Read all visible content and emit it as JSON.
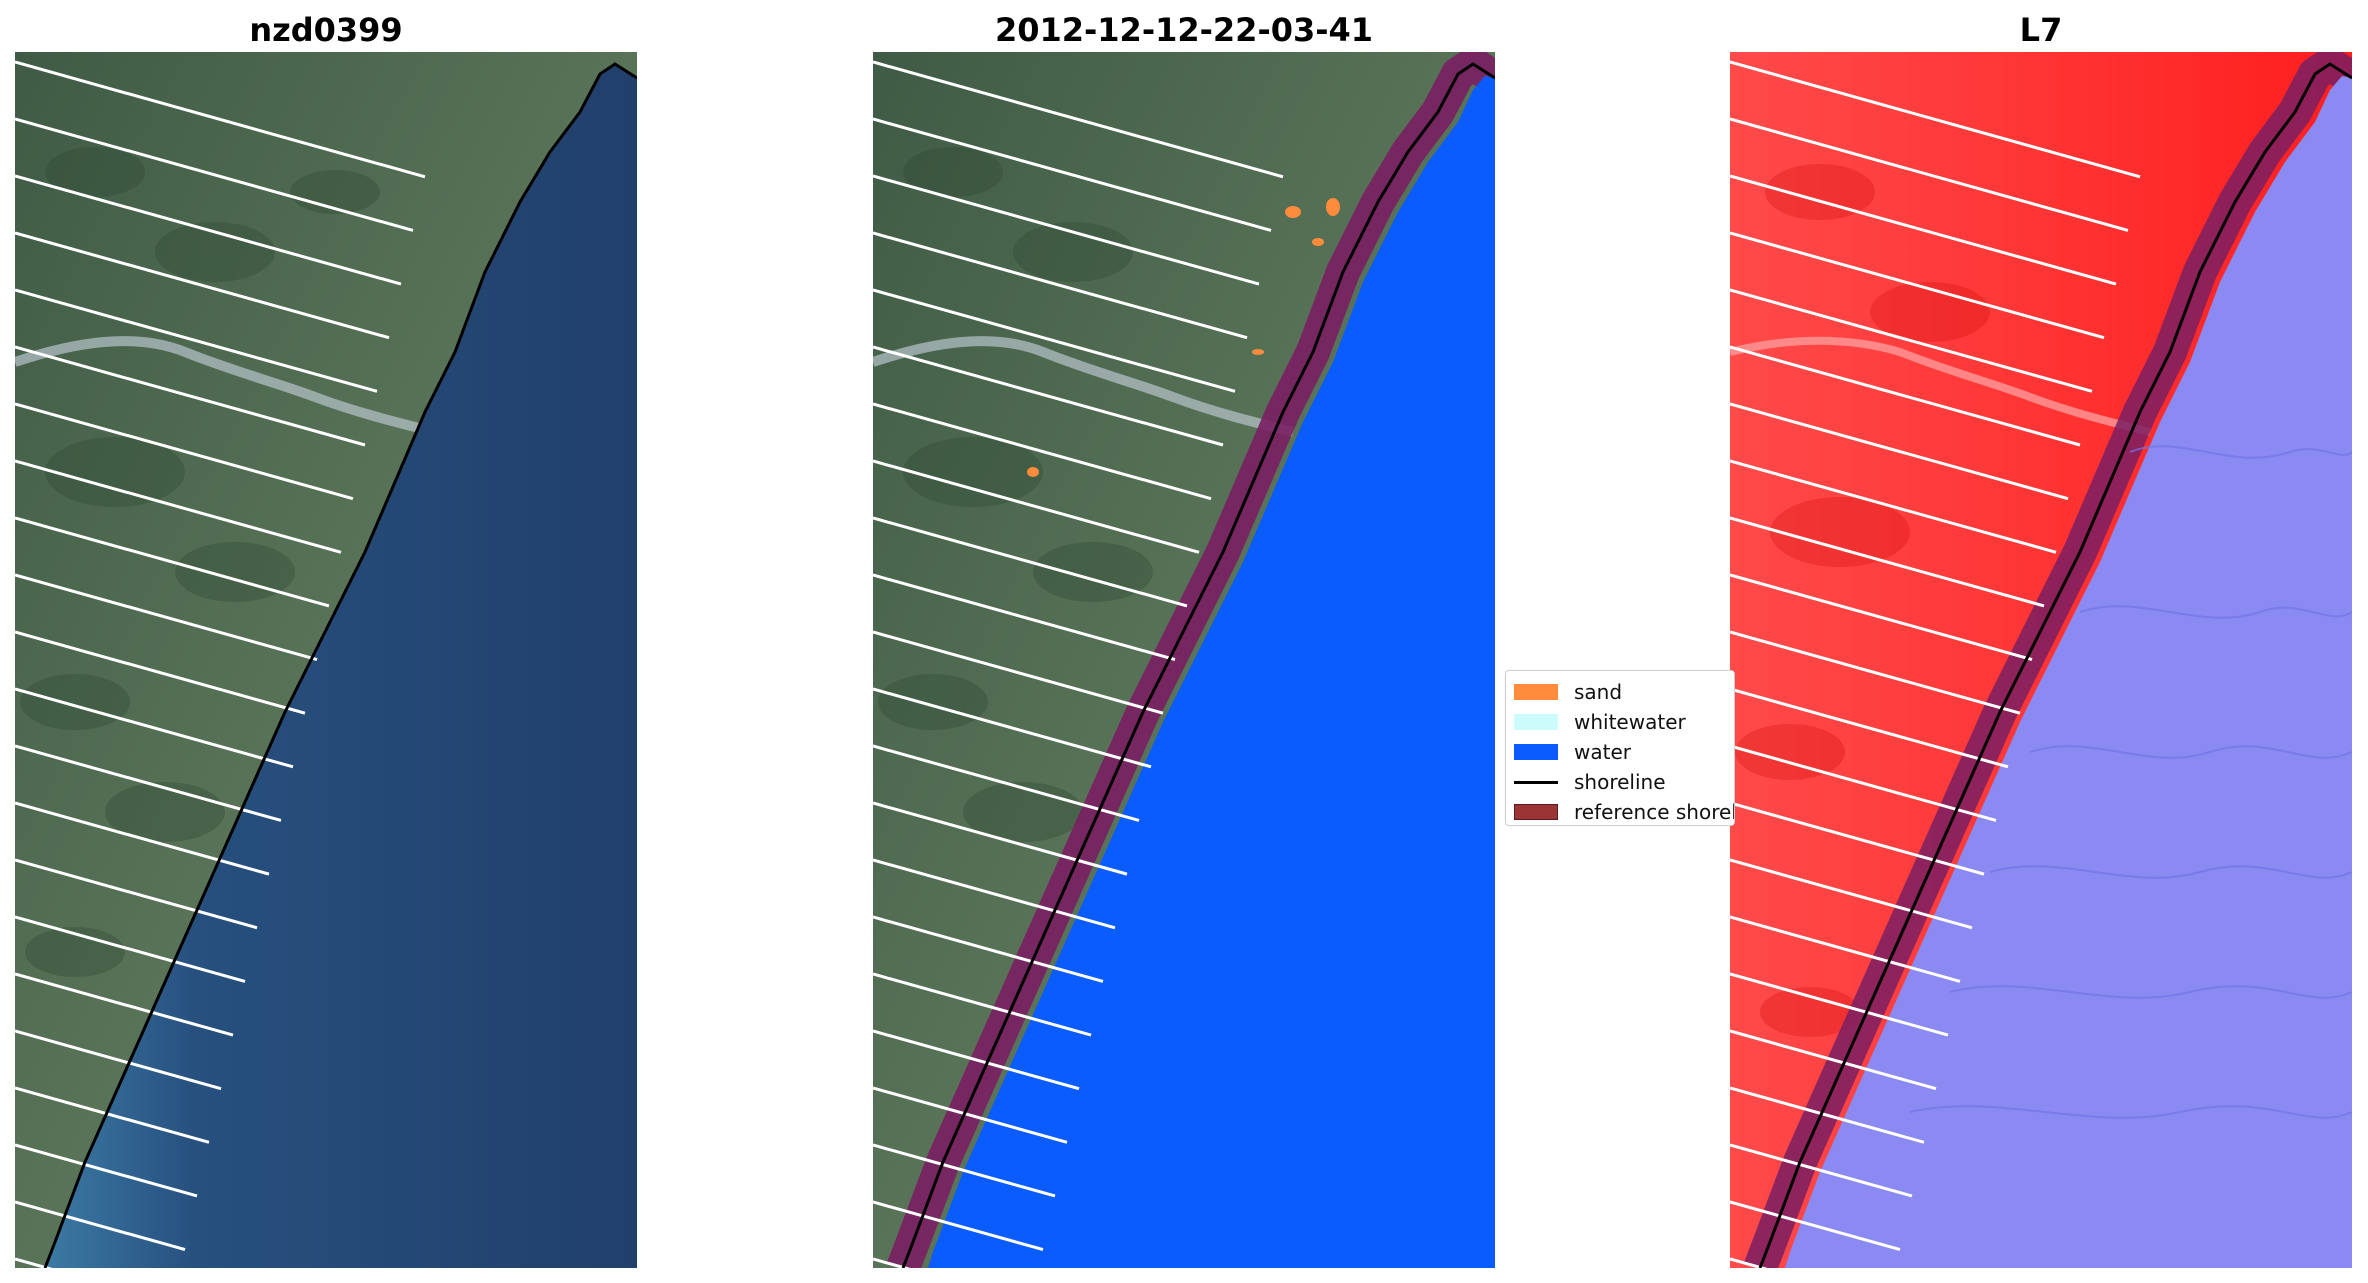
{
  "panels": [
    {
      "title": "nzd0399"
    },
    {
      "title": "2012-12-12-22-03-41"
    },
    {
      "title": "L7"
    }
  ],
  "legend": {
    "items": [
      {
        "label": "sand",
        "color": "#ff8c3c",
        "kind": "patch"
      },
      {
        "label": "whitewater",
        "color": "#ccfbfb",
        "kind": "patch"
      },
      {
        "label": "water",
        "color": "#0a5cff",
        "kind": "patch"
      },
      {
        "label": "shoreline",
        "color": "#000000",
        "kind": "line"
      },
      {
        "label": "reference shoreline",
        "color": "#9b3535",
        "kind": "patch"
      }
    ]
  },
  "colors": {
    "land_rgb": "#4d6a52",
    "sea_rgb": "#22477a",
    "classified_water": "#0a5cff",
    "reference_buffer": "#7a1f63",
    "index_land": "#ff2a2a",
    "index_water": "#8a8af2",
    "shoreline": "#000000",
    "scanline_gaps": "#ffffff"
  }
}
